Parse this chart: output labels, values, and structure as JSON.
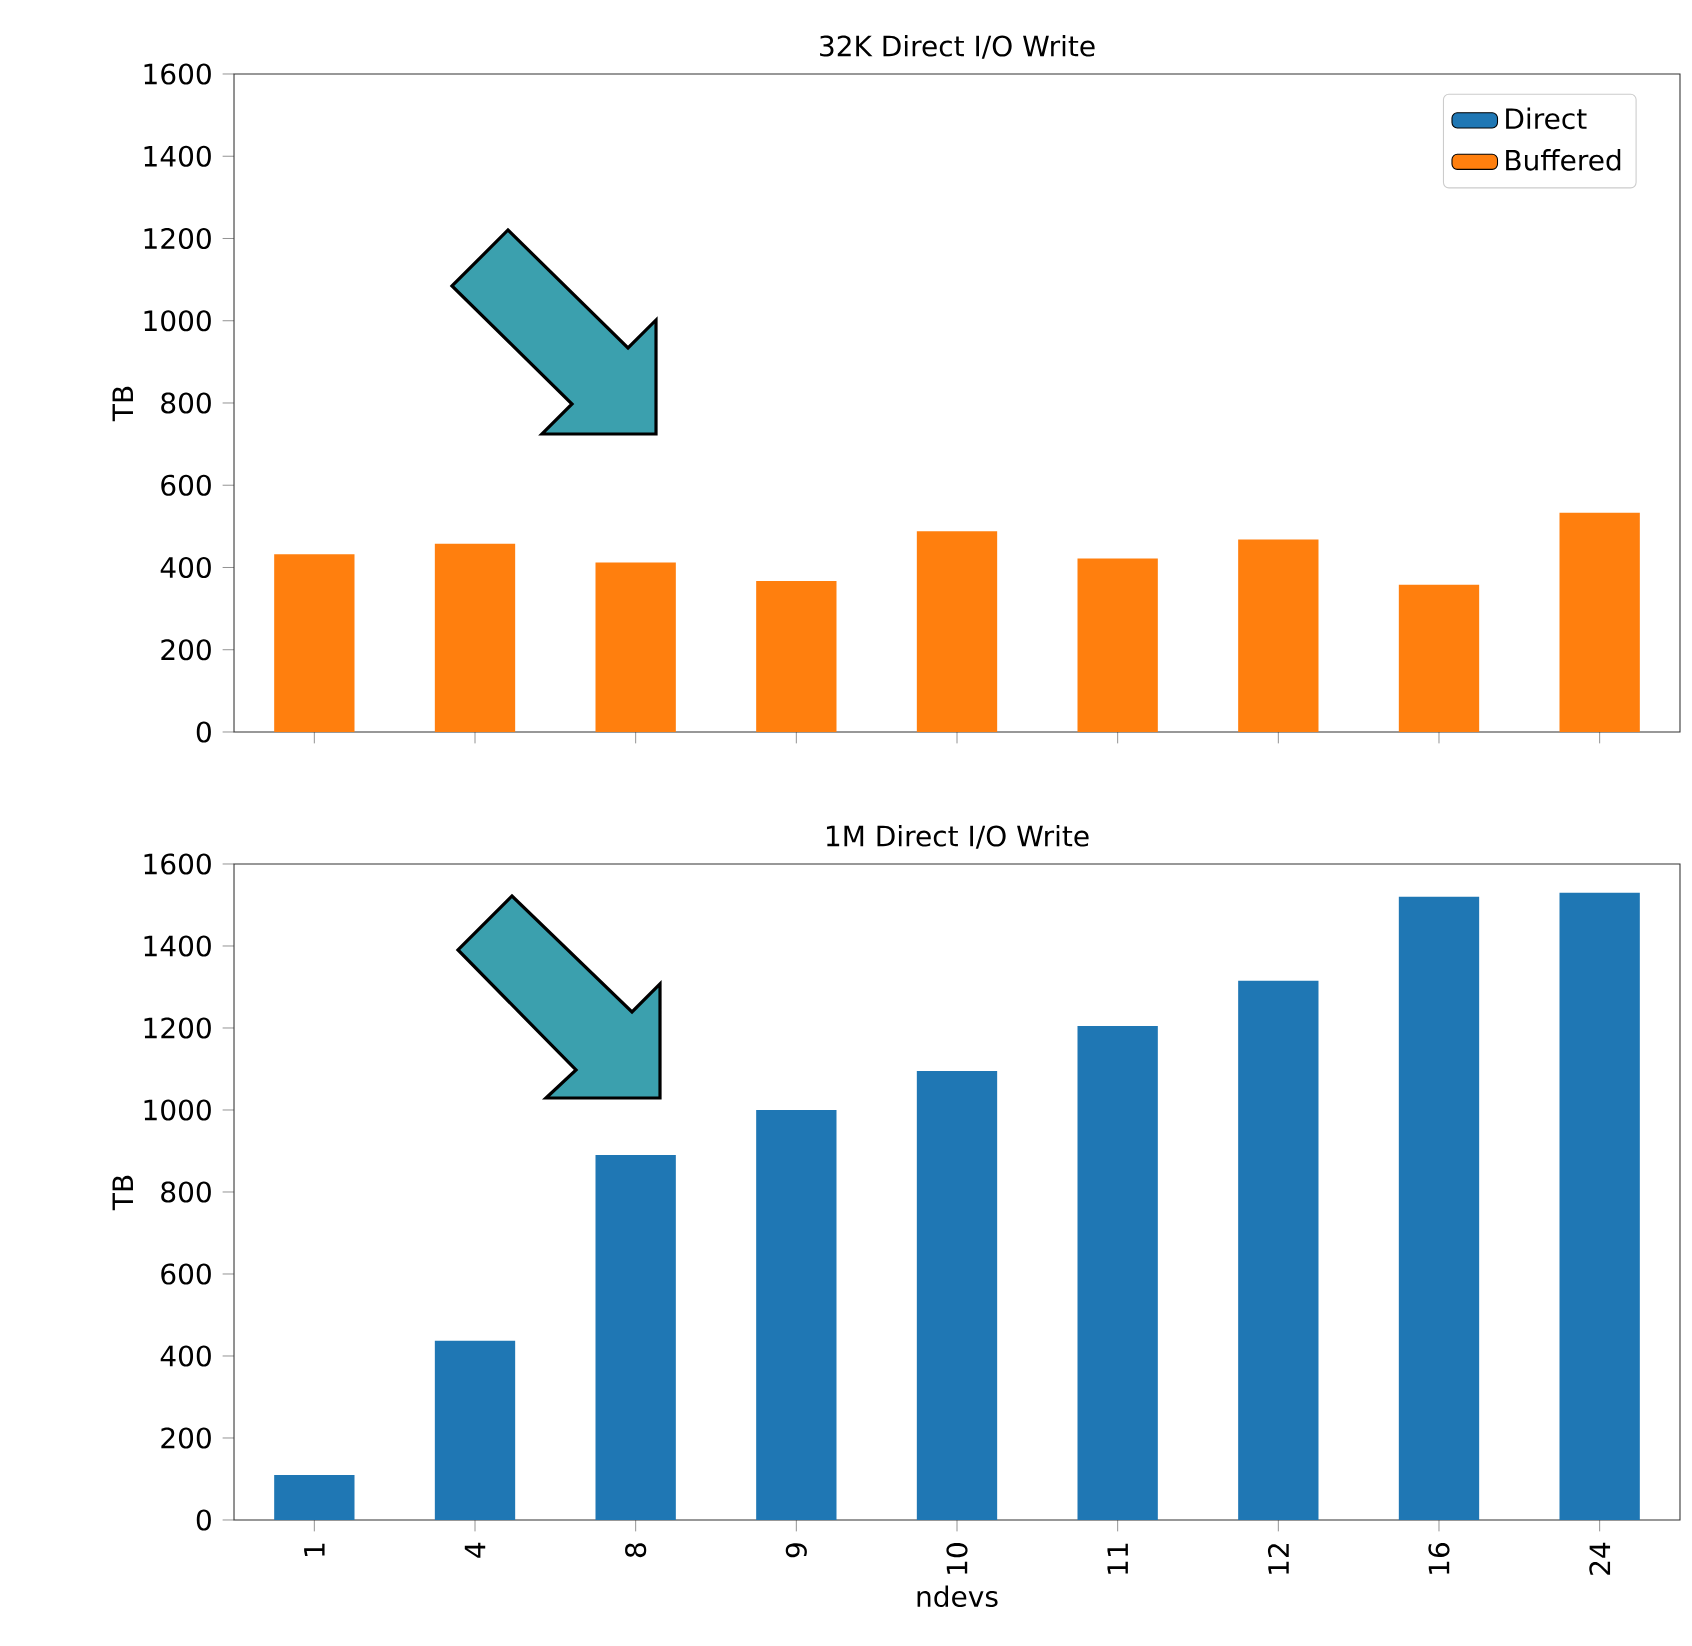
{
  "chart_data": [
    {
      "type": "bar",
      "title": "32K Direct I/O Write",
      "ylabel": "TB",
      "categories": [
        "1",
        "4",
        "8",
        "9",
        "10",
        "11",
        "12",
        "16",
        "24"
      ],
      "legend": "top right",
      "tick_labels": "y",
      "ylim": [
        0,
        1600
      ],
      "yticks": [
        0,
        200,
        400,
        600,
        800,
        1000,
        1200,
        1400,
        1600
      ],
      "series": [
        {
          "name": "Direct",
          "color": "#1f77b4",
          "values": [
            null,
            null,
            null,
            null,
            null,
            null,
            null,
            null,
            null
          ]
        },
        {
          "name": "Buffered",
          "color": "#ff7f0e",
          "values": [
            432,
            458,
            412,
            367,
            488,
            422,
            468,
            358,
            533
          ]
        }
      ]
    },
    {
      "type": "bar",
      "title": "1M Direct I/O Write",
      "xlabel": "ndevs",
      "ylabel": "TB",
      "categories": [
        "1",
        "4",
        "8",
        "9",
        "10",
        "11",
        "12",
        "16",
        "24"
      ],
      "ylim": [
        0,
        1600
      ],
      "yticks": [
        0,
        200,
        400,
        600,
        800,
        1000,
        1200,
        1400,
        1600
      ],
      "series": [
        {
          "color": "#1f77b4",
          "values": [
            110,
            437,
            890,
            1000,
            1095,
            1205,
            1315,
            1520,
            1530
          ]
        }
      ]
    }
  ]
}
